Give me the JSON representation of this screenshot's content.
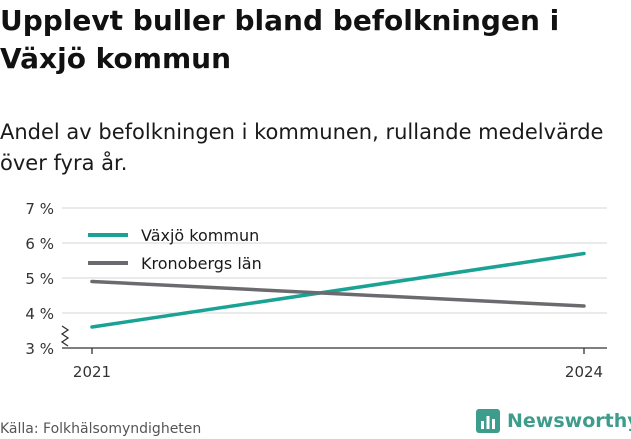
{
  "header": {
    "title": "Upplevt buller bland befolkningen i Växjö kommun",
    "subtitle": "Andel av befolkningen i kommunen, rullande medelvärde över fyra år."
  },
  "footer": {
    "source": "Källa: Folkhälsomyndigheten",
    "brand": "Newsworthy"
  },
  "colors": {
    "vaxjo": "#1aa394",
    "kronoberg": "#6b6b6f",
    "brand": "#3e9c8c"
  },
  "chart_data": {
    "type": "line",
    "x": [
      "2021",
      "2024"
    ],
    "series": [
      {
        "name": "Växjö kommun",
        "values": [
          3.6,
          5.7
        ],
        "color": "#1aa394"
      },
      {
        "name": "Kronobergs län",
        "values": [
          4.9,
          4.2
        ],
        "color": "#6b6b6f"
      }
    ],
    "yticks": [
      3,
      4,
      5,
      6,
      7
    ],
    "ytick_labels": [
      "3 %",
      "4 %",
      "5 %",
      "6 %",
      "7 %"
    ],
    "ylim": [
      3,
      7
    ],
    "y_axis_break": true,
    "grid": "horizontal",
    "legend": "top-left"
  }
}
